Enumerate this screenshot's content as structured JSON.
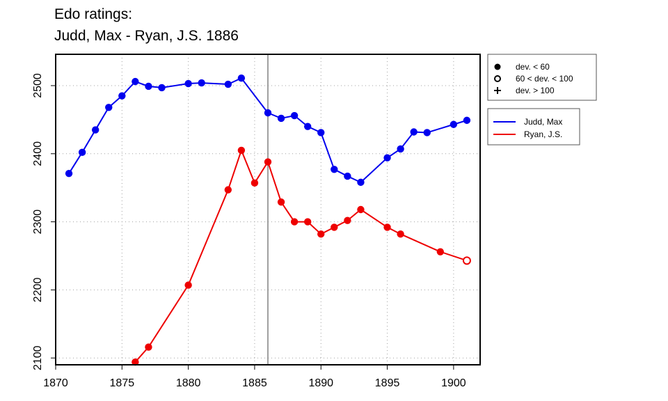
{
  "title_line1": "Edo ratings:",
  "title_line2": "Judd, Max - Ryan, J.S. 1886",
  "chart_data": {
    "type": "line",
    "xlim": [
      1870,
      1902
    ],
    "ylim": [
      2090,
      2546
    ],
    "x_ticks": [
      1870,
      1875,
      1880,
      1885,
      1890,
      1895,
      1900
    ],
    "y_ticks": [
      2100,
      2200,
      2300,
      2400,
      2500
    ],
    "grid": true,
    "vline": 1886,
    "series": [
      {
        "name": "Judd, Max",
        "color": "#0000ee",
        "x": [
          1871,
          1872,
          1873,
          1874,
          1875,
          1876,
          1877,
          1878,
          1880,
          1881,
          1883,
          1884,
          1886,
          1887,
          1888,
          1889,
          1890,
          1891,
          1892,
          1893,
          1895,
          1896,
          1897,
          1898,
          1900,
          1901
        ],
        "y": [
          2371,
          2402,
          2435,
          2468,
          2485,
          2506,
          2499,
          2497,
          2503,
          2504,
          2502,
          2511,
          2460,
          2452,
          2456,
          2440,
          2431,
          2377,
          2367,
          2358,
          2394,
          2407,
          2432,
          2431,
          2443,
          2449
        ],
        "markers": [
          "solid",
          "solid",
          "solid",
          "solid",
          "solid",
          "solid",
          "solid",
          "solid",
          "solid",
          "solid",
          "solid",
          "solid",
          "solid",
          "solid",
          "solid",
          "solid",
          "solid",
          "solid",
          "solid",
          "solid",
          "solid",
          "solid",
          "solid",
          "solid",
          "solid",
          "solid"
        ]
      },
      {
        "name": "Ryan, J.S.",
        "color": "#ee0000",
        "x": [
          1876,
          1877,
          1880,
          1883,
          1884,
          1885,
          1886,
          1887,
          1888,
          1889,
          1890,
          1891,
          1892,
          1893,
          1895,
          1896,
          1899,
          1901
        ],
        "y": [
          2094,
          2116,
          2207,
          2347,
          2405,
          2357,
          2388,
          2329,
          2300,
          2300,
          2282,
          2292,
          2302,
          2318,
          2292,
          2282,
          2256,
          2243
        ],
        "markers": [
          "solid",
          "solid",
          "solid",
          "solid",
          "solid",
          "solid",
          "solid",
          "solid",
          "solid",
          "solid",
          "solid",
          "solid",
          "solid",
          "solid",
          "solid",
          "solid",
          "solid",
          "open"
        ]
      }
    ],
    "marker_legend": [
      {
        "symbol": "solid",
        "label": "dev. < 60"
      },
      {
        "symbol": "open",
        "label": "60 < dev. < 100"
      },
      {
        "symbol": "plus",
        "label": "dev. > 100"
      }
    ]
  }
}
